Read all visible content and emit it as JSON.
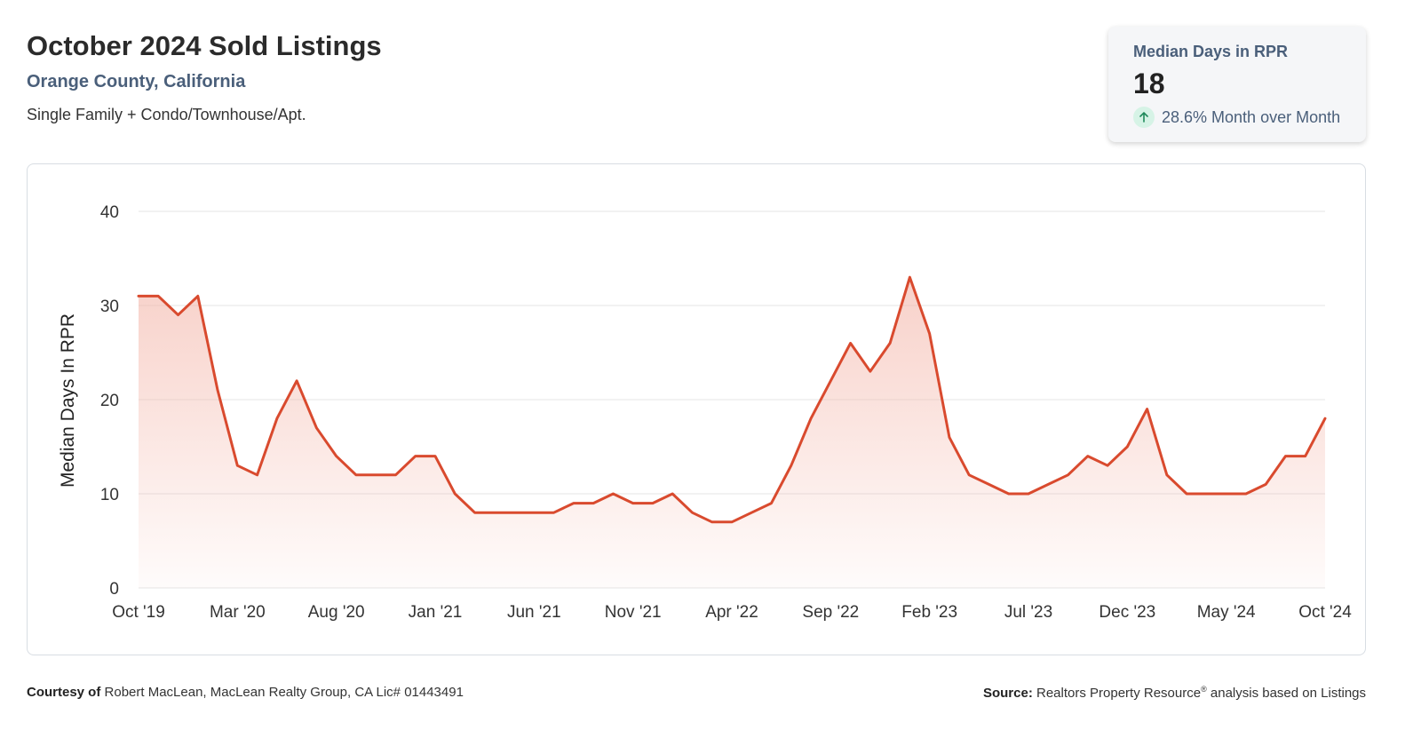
{
  "header": {
    "title": "October 2024 Sold Listings",
    "location": "Orange County, California",
    "segment": "Single Family + Condo/Townhouse/Apt."
  },
  "kpi": {
    "label": "Median Days in RPR",
    "value": "18",
    "change": "28.6% Month over Month",
    "icon": "arrow-up-icon",
    "accent": "#1f8a5b"
  },
  "colors": {
    "line": "#d94a2e",
    "fill_top": "#f4b8ac",
    "grid": "#e4e4e4",
    "axis_text": "#333333"
  },
  "chart_data": {
    "type": "area",
    "title": "",
    "xlabel": "",
    "ylabel": "Median Days In RPR",
    "ylim": [
      0,
      40
    ],
    "yticks": [
      0,
      10,
      20,
      30,
      40
    ],
    "grid": true,
    "xtick_labels": [
      "Oct '19",
      "Mar '20",
      "Aug '20",
      "Jan '21",
      "Jun '21",
      "Nov '21",
      "Apr '22",
      "Sep '22",
      "Feb '23",
      "Jul '23",
      "Dec '23",
      "May '24",
      "Oct '24"
    ],
    "series": [
      {
        "name": "Median Days in RPR",
        "start": "Oct '19",
        "end": "Oct '24",
        "values": [
          31,
          31,
          29,
          31,
          21,
          13,
          12,
          18,
          22,
          17,
          14,
          12,
          12,
          12,
          14,
          14,
          10,
          8,
          8,
          8,
          8,
          8,
          9,
          9,
          10,
          9,
          9,
          10,
          8,
          7,
          7,
          8,
          9,
          13,
          18,
          22,
          26,
          23,
          26,
          33,
          27,
          16,
          12,
          11,
          10,
          10,
          11,
          12,
          14,
          13,
          15,
          19,
          12,
          10,
          10,
          10,
          10,
          11,
          14,
          14,
          18
        ]
      }
    ]
  },
  "footer": {
    "courtesy_label": "Courtesy of",
    "courtesy_text": "Robert MacLean, MacLean Realty Group, CA Lic# 01443491",
    "source_label": "Source:",
    "source_text": "Realtors Property Resource",
    "source_reg": "®",
    "source_suffix": "analysis based on Listings"
  }
}
